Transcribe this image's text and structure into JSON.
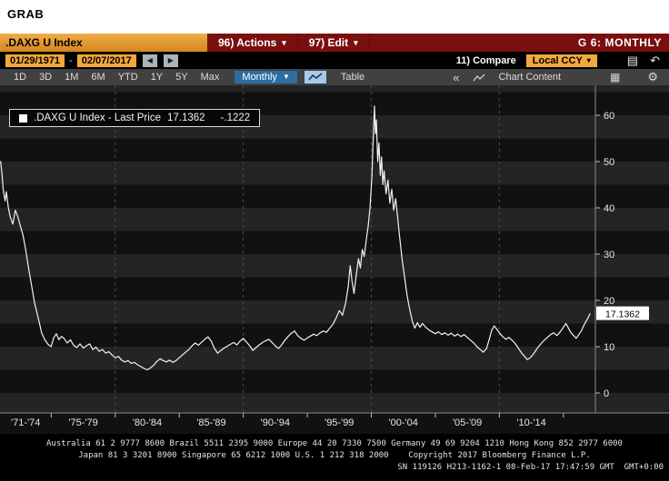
{
  "window": {
    "grab_title": "GRAB"
  },
  "toolbar": {
    "security": ".DAXG U Index",
    "actions_label": "96) Actions",
    "edit_label": "97) Edit",
    "page_label": "G 6: MONTHLY",
    "date_from": "01/29/1971",
    "date_to": "02/07/2017",
    "date_separator": "-",
    "prev_arrow": "◀",
    "next_arrow": "▶",
    "compare_label": "11) Compare",
    "currency_label": "Local CCY",
    "ranges": [
      "1D",
      "3D",
      "1M",
      "6M",
      "YTD",
      "1Y",
      "5Y",
      "Max"
    ],
    "frequency": "Monthly",
    "table_label": "Table",
    "collapse_label": "«",
    "chart_content_label": "Chart Content"
  },
  "legend": {
    "label": ".DAXG U Index - Last Price",
    "value": "17.1362",
    "change": "-.1222"
  },
  "chart_data": {
    "type": "line",
    "title": ".DAXG U Index - Last Price",
    "last_price": 17.1362,
    "change": -0.1222,
    "ylim": [
      0,
      60
    ],
    "yticks": [
      0,
      10,
      20,
      30,
      40,
      50,
      60
    ],
    "x_unit": "year",
    "xlim": [
      1971,
      2017.5
    ],
    "grid_years": [
      1980,
      1990,
      2000,
      2010
    ],
    "tick_years": [
      1975,
      1980,
      1985,
      1990,
      1995,
      2000,
      2005,
      2010,
      2015
    ],
    "x_labels": [
      {
        "text": "'71-'74",
        "center": 1973
      },
      {
        "text": "'75-'79",
        "center": 1977.5
      },
      {
        "text": "'80-'84",
        "center": 1982.5
      },
      {
        "text": "'85-'89",
        "center": 1987.5
      },
      {
        "text": "'90-'94",
        "center": 1992.5
      },
      {
        "text": "'95-'99",
        "center": 1997.5
      },
      {
        "text": "'00-'04",
        "center": 2002.5
      },
      {
        "text": "'05-'09",
        "center": 2007.5
      },
      {
        "text": "'10-'14",
        "center": 2012.5
      }
    ],
    "colors": {
      "line": "#f2f2f2",
      "band_dark": "#111111",
      "band_light": "#242424",
      "grid": "#4d4d4d",
      "axis": "#8a8a8a",
      "tick_label": "#e8e8e8",
      "flag_bg": "#ffffff",
      "flag_text": "#000000"
    },
    "series": [
      {
        "name": ".DAXG U Index Last Price",
        "points": [
          [
            1971.05,
            50.0
          ],
          [
            1971.15,
            47.5
          ],
          [
            1971.25,
            44.0
          ],
          [
            1971.4,
            41.5
          ],
          [
            1971.5,
            43.5
          ],
          [
            1971.65,
            40.0
          ],
          [
            1971.8,
            38.0
          ],
          [
            1972.0,
            36.5
          ],
          [
            1972.2,
            39.5
          ],
          [
            1972.4,
            38.0
          ],
          [
            1972.6,
            36.0
          ],
          [
            1972.8,
            34.0
          ],
          [
            1973.0,
            31.0
          ],
          [
            1973.2,
            27.5
          ],
          [
            1973.45,
            23.5
          ],
          [
            1973.7,
            19.5
          ],
          [
            1974.0,
            16.0
          ],
          [
            1974.25,
            13.0
          ],
          [
            1974.5,
            11.5
          ],
          [
            1974.75,
            10.5
          ],
          [
            1975.0,
            10.0
          ],
          [
            1975.2,
            12.0
          ],
          [
            1975.4,
            12.8
          ],
          [
            1975.6,
            11.5
          ],
          [
            1975.8,
            12.2
          ],
          [
            1976.0,
            11.8
          ],
          [
            1976.25,
            10.8
          ],
          [
            1976.5,
            11.5
          ],
          [
            1976.75,
            10.3
          ],
          [
            1977.0,
            9.8
          ],
          [
            1977.25,
            10.6
          ],
          [
            1977.5,
            9.7
          ],
          [
            1977.75,
            10.2
          ],
          [
            1978.0,
            10.6
          ],
          [
            1978.25,
            9.4
          ],
          [
            1978.5,
            9.9
          ],
          [
            1978.75,
            9.0
          ],
          [
            1979.0,
            9.4
          ],
          [
            1979.25,
            8.6
          ],
          [
            1979.5,
            8.9
          ],
          [
            1979.75,
            8.2
          ],
          [
            1980.0,
            7.6
          ],
          [
            1980.25,
            7.9
          ],
          [
            1980.5,
            7.1
          ],
          [
            1980.75,
            6.7
          ],
          [
            1981.0,
            7.0
          ],
          [
            1981.25,
            6.4
          ],
          [
            1981.5,
            6.6
          ],
          [
            1981.75,
            6.1
          ],
          [
            1982.0,
            5.7
          ],
          [
            1982.25,
            5.3
          ],
          [
            1982.5,
            5.0
          ],
          [
            1982.75,
            5.4
          ],
          [
            1983.0,
            6.0
          ],
          [
            1983.25,
            6.8
          ],
          [
            1983.5,
            7.4
          ],
          [
            1983.75,
            7.0
          ],
          [
            1984.0,
            6.7
          ],
          [
            1984.25,
            7.1
          ],
          [
            1984.5,
            6.6
          ],
          [
            1984.75,
            7.0
          ],
          [
            1985.0,
            7.6
          ],
          [
            1985.25,
            8.2
          ],
          [
            1985.5,
            8.8
          ],
          [
            1985.75,
            9.4
          ],
          [
            1986.0,
            10.2
          ],
          [
            1986.25,
            10.8
          ],
          [
            1986.5,
            10.3
          ],
          [
            1986.75,
            11.0
          ],
          [
            1987.0,
            11.6
          ],
          [
            1987.25,
            12.1
          ],
          [
            1987.5,
            11.2
          ],
          [
            1987.75,
            9.6
          ],
          [
            1988.0,
            8.6
          ],
          [
            1988.25,
            9.2
          ],
          [
            1988.5,
            9.7
          ],
          [
            1988.75,
            10.1
          ],
          [
            1989.0,
            10.5
          ],
          [
            1989.25,
            10.9
          ],
          [
            1989.5,
            10.4
          ],
          [
            1989.75,
            11.2
          ],
          [
            1990.0,
            11.8
          ],
          [
            1990.25,
            11.0
          ],
          [
            1990.5,
            10.2
          ],
          [
            1990.75,
            9.2
          ],
          [
            1991.0,
            9.8
          ],
          [
            1991.25,
            10.4
          ],
          [
            1991.5,
            10.9
          ],
          [
            1991.75,
            11.3
          ],
          [
            1992.0,
            11.6
          ],
          [
            1992.25,
            10.9
          ],
          [
            1992.5,
            10.2
          ],
          [
            1992.75,
            9.6
          ],
          [
            1993.0,
            10.4
          ],
          [
            1993.25,
            11.4
          ],
          [
            1993.5,
            12.2
          ],
          [
            1993.75,
            12.9
          ],
          [
            1994.0,
            13.4
          ],
          [
            1994.25,
            12.4
          ],
          [
            1994.5,
            11.8
          ],
          [
            1994.75,
            11.4
          ],
          [
            1995.0,
            11.9
          ],
          [
            1995.25,
            12.3
          ],
          [
            1995.5,
            12.7
          ],
          [
            1995.75,
            12.4
          ],
          [
            1996.0,
            13.0
          ],
          [
            1996.25,
            13.4
          ],
          [
            1996.5,
            13.1
          ],
          [
            1996.75,
            14.0
          ],
          [
            1997.0,
            14.8
          ],
          [
            1997.25,
            16.2
          ],
          [
            1997.5,
            17.8
          ],
          [
            1997.75,
            16.8
          ],
          [
            1998.0,
            19.5
          ],
          [
            1998.2,
            23.0
          ],
          [
            1998.35,
            27.5
          ],
          [
            1998.5,
            24.0
          ],
          [
            1998.65,
            21.5
          ],
          [
            1998.8,
            25.0
          ],
          [
            1999.0,
            29.0
          ],
          [
            1999.15,
            27.0
          ],
          [
            1999.3,
            31.0
          ],
          [
            1999.45,
            29.5
          ],
          [
            1999.6,
            33.0
          ],
          [
            1999.75,
            36.0
          ],
          [
            1999.9,
            40.0
          ],
          [
            2000.05,
            47.0
          ],
          [
            2000.15,
            55.0
          ],
          [
            2000.25,
            62.0
          ],
          [
            2000.32,
            56.0
          ],
          [
            2000.4,
            59.0
          ],
          [
            2000.5,
            50.0
          ],
          [
            2000.6,
            54.0
          ],
          [
            2000.7,
            47.0
          ],
          [
            2000.8,
            51.0
          ],
          [
            2000.9,
            45.0
          ],
          [
            2001.0,
            48.0
          ],
          [
            2001.15,
            43.0
          ],
          [
            2001.3,
            46.0
          ],
          [
            2001.45,
            41.0
          ],
          [
            2001.6,
            44.0
          ],
          [
            2001.75,
            39.5
          ],
          [
            2001.9,
            42.0
          ],
          [
            2002.05,
            38.0
          ],
          [
            2002.2,
            34.0
          ],
          [
            2002.4,
            29.0
          ],
          [
            2002.6,
            25.0
          ],
          [
            2002.8,
            21.0
          ],
          [
            2003.0,
            18.0
          ],
          [
            2003.2,
            15.5
          ],
          [
            2003.4,
            14.0
          ],
          [
            2003.6,
            15.2
          ],
          [
            2003.8,
            14.2
          ],
          [
            2004.0,
            15.0
          ],
          [
            2004.25,
            14.2
          ],
          [
            2004.5,
            13.6
          ],
          [
            2004.75,
            13.2
          ],
          [
            2005.0,
            12.8
          ],
          [
            2005.25,
            13.2
          ],
          [
            2005.5,
            12.6
          ],
          [
            2005.75,
            13.0
          ],
          [
            2006.0,
            12.5
          ],
          [
            2006.25,
            12.9
          ],
          [
            2006.5,
            12.3
          ],
          [
            2006.75,
            12.7
          ],
          [
            2007.0,
            12.2
          ],
          [
            2007.25,
            12.6
          ],
          [
            2007.5,
            12.0
          ],
          [
            2007.75,
            11.4
          ],
          [
            2008.0,
            10.8
          ],
          [
            2008.25,
            10.0
          ],
          [
            2008.5,
            9.4
          ],
          [
            2008.75,
            8.8
          ],
          [
            2009.0,
            9.6
          ],
          [
            2009.2,
            11.5
          ],
          [
            2009.4,
            13.5
          ],
          [
            2009.6,
            14.5
          ],
          [
            2009.8,
            13.8
          ],
          [
            2010.0,
            13.0
          ],
          [
            2010.25,
            12.2
          ],
          [
            2010.5,
            11.6
          ],
          [
            2010.75,
            12.0
          ],
          [
            2011.0,
            11.4
          ],
          [
            2011.25,
            10.6
          ],
          [
            2011.5,
            9.6
          ],
          [
            2011.75,
            8.6
          ],
          [
            2012.0,
            7.8
          ],
          [
            2012.2,
            7.2
          ],
          [
            2012.4,
            7.6
          ],
          [
            2012.6,
            8.2
          ],
          [
            2012.8,
            9.0
          ],
          [
            2013.0,
            9.8
          ],
          [
            2013.25,
            10.6
          ],
          [
            2013.5,
            11.4
          ],
          [
            2013.75,
            12.0
          ],
          [
            2014.0,
            12.6
          ],
          [
            2014.25,
            13.0
          ],
          [
            2014.5,
            12.4
          ],
          [
            2014.75,
            13.2
          ],
          [
            2015.0,
            14.2
          ],
          [
            2015.2,
            15.0
          ],
          [
            2015.4,
            14.0
          ],
          [
            2015.6,
            13.0
          ],
          [
            2015.8,
            12.4
          ],
          [
            2016.0,
            11.8
          ],
          [
            2016.2,
            12.6
          ],
          [
            2016.4,
            13.4
          ],
          [
            2016.6,
            14.6
          ],
          [
            2016.8,
            15.6
          ],
          [
            2016.95,
            16.4
          ],
          [
            2017.08,
            17.1362
          ]
        ]
      }
    ]
  },
  "footer": {
    "line1": "Australia 61 2 9777 8600 Brazil 5511 2395 9000 Europe 44 20 7330 7500 Germany 49 69 9204 1210 Hong Kong 852 2977 6000",
    "line2": "Japan 81 3 3201 8900 Singapore 65 6212 1000 U.S. 1 212 318 2000    Copyright 2017 Bloomberg Finance L.P.",
    "line3": "SN 119126 H213-1162-1 08-Feb-17 17:47:59 GMT  GMT+0:00"
  }
}
